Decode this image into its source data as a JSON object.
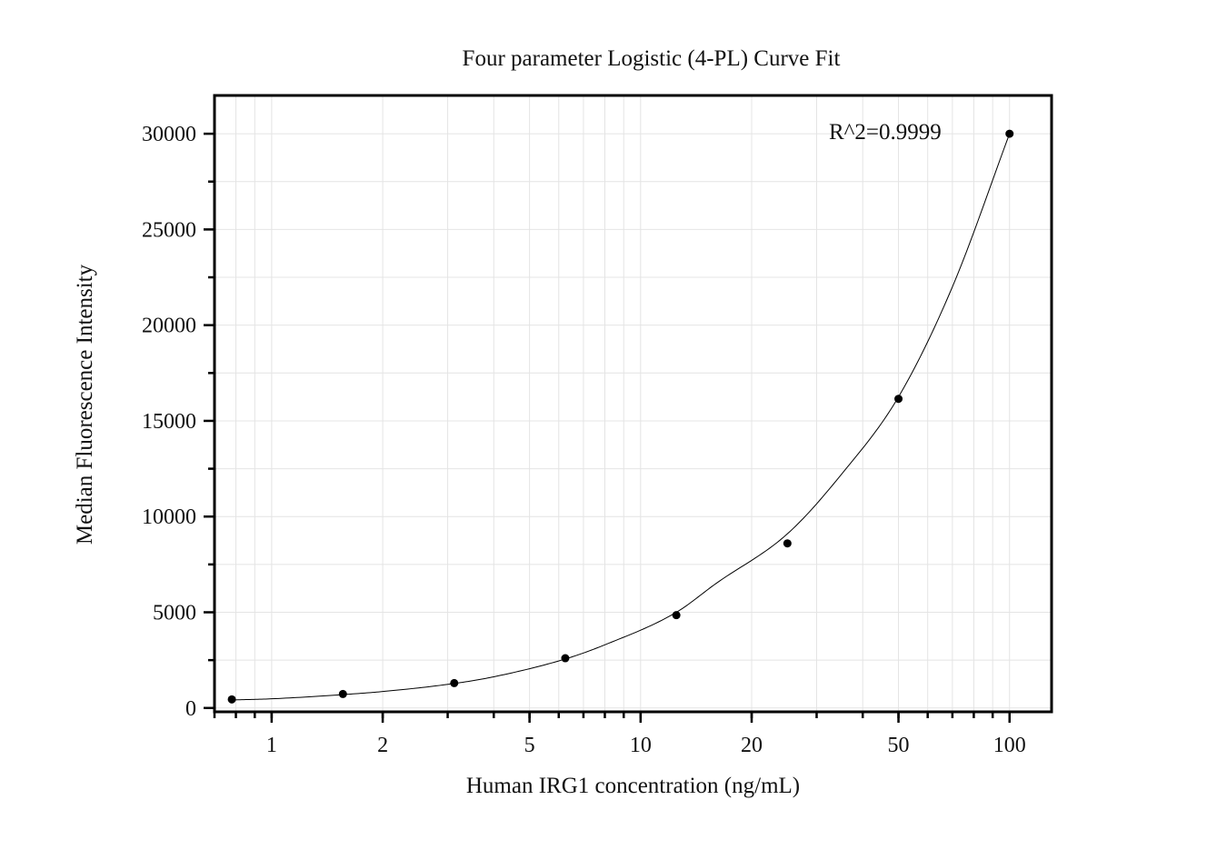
{
  "chart_data": {
    "type": "scatter",
    "title": "Four parameter Logistic (4-PL) Curve Fit",
    "xlabel": "Human IRG1 concentration (ng/mL)",
    "ylabel": "Median Fluorescence Intensity",
    "x_scale": "log",
    "xlim": [
      0.7,
      130
    ],
    "ylim": [
      -200,
      32000
    ],
    "x_ticks": [
      1,
      2,
      5,
      10,
      20,
      50,
      100
    ],
    "x_tick_labels": [
      "1",
      "2",
      "5",
      "10",
      "20",
      "50",
      "100"
    ],
    "y_ticks": [
      0,
      5000,
      10000,
      15000,
      20000,
      25000,
      30000
    ],
    "y_tick_labels": [
      "0",
      "5000",
      "10000",
      "15000",
      "20000",
      "25000",
      "30000"
    ],
    "grid": true,
    "annotation": "R^2=0.9999",
    "points": {
      "x": [
        0.78,
        1.56,
        3.125,
        6.25,
        12.5,
        25,
        50,
        100
      ],
      "y": [
        450,
        730,
        1300,
        2600,
        4850,
        8600,
        16150,
        30000
      ]
    },
    "fit_curve": {
      "type": "4PL",
      "x": [
        0.78,
        1,
        1.56,
        2,
        3.125,
        4,
        6.25,
        8,
        12.5,
        16,
        25,
        35,
        50,
        70,
        100
      ],
      "y": [
        420,
        480,
        700,
        860,
        1280,
        1630,
        2560,
        3300,
        5000,
        6500,
        9100,
        12200,
        16250,
        22000,
        30000
      ]
    },
    "colors": {
      "points": "#000000",
      "curve": "#000000",
      "grid": "#e4e4e4"
    }
  }
}
